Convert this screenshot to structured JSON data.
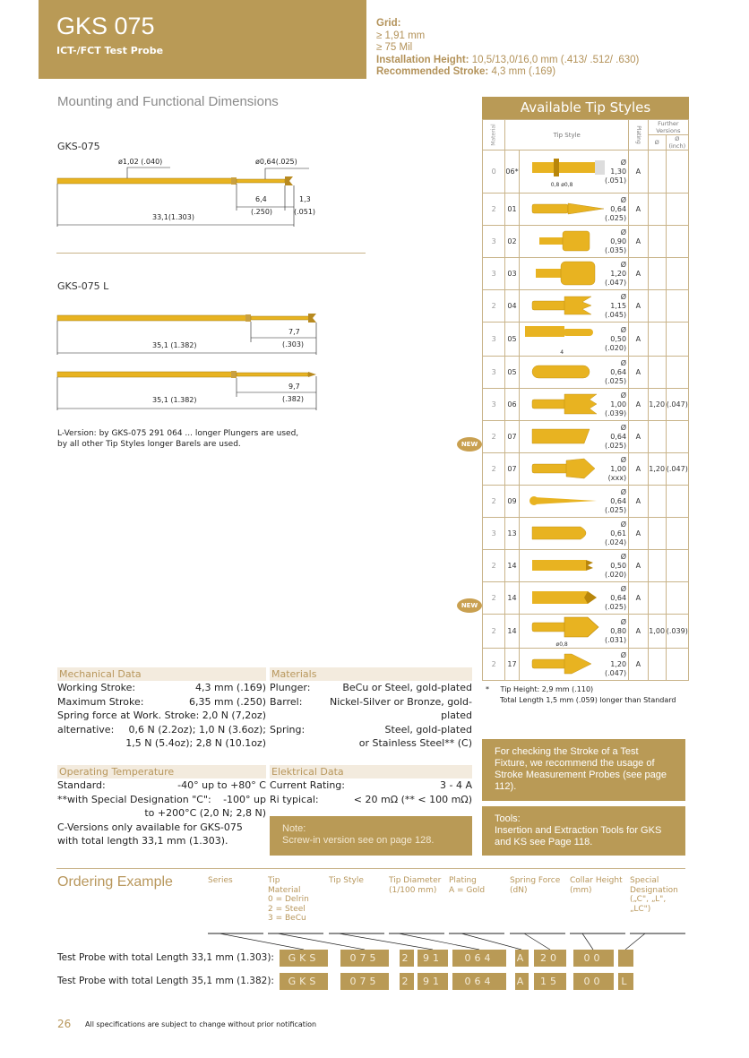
{
  "header": {
    "title": "GKS 075",
    "subtitle": "ICT-/FCT Test Probe"
  },
  "specs": {
    "grid_label": "Grid:",
    "grid_mm": "≥ 1,91 mm",
    "grid_mil": "≥ 75 Mil",
    "install_label": "Installation Height:",
    "install_value": "10,5/13,0/16,0 mm (.413/ .512/ .630)",
    "stroke_label": "Recommended Stroke:",
    "stroke_value": "4,3 mm (.169)"
  },
  "mounting": {
    "title": "Mounting and Functional Dimensions",
    "gks075": {
      "label": "GKS-075",
      "d_barrel": "ø1,02 (.040)",
      "d_plunger": "ø0,64(.025)",
      "dim1": "6,4",
      "dim1_in": "(.250)",
      "dim2": "1,3",
      "dim2_in": "(.051)",
      "total": "33,1(1.303)"
    },
    "gks075l": {
      "label": "GKS-075 L",
      "a_dim": "7,7",
      "a_dim_in": "(.303)",
      "a_total": "35,1 (1.382)",
      "b_dim": "9,7",
      "b_dim_in": "(.382)",
      "b_total": "35,1 (1.382)"
    },
    "note1": "L-Version: by  GKS-075 291 064 ... longer Plungers are used,",
    "note2": "by all other Tip Styles longer Barels are used."
  },
  "tips": {
    "title": "Available Tip Styles",
    "col_material": "Material",
    "col_tipstyle": "Tip Style",
    "col_plating": "Plating",
    "col_further": "Further Versions",
    "col_d": "Ø",
    "col_d_inch": "Ø (inch)",
    "rows": [
      {
        "mat": "0",
        "code": "06*",
        "d": "Ø 1,30",
        "in": "(.051)",
        "pl": "A",
        "fd": "",
        "fi": "",
        "shape": "collar-tip",
        "new": false,
        "dim_a": "0,8",
        "dim_b": "ø0,8"
      },
      {
        "mat": "2",
        "code": "01",
        "d": "Ø 0,64",
        "in": "(.025)",
        "pl": "A",
        "fd": "",
        "fi": "",
        "shape": "cone-point",
        "new": false
      },
      {
        "mat": "3",
        "code": "02",
        "d": "Ø 0,90",
        "in": "(.035)",
        "pl": "A",
        "fd": "",
        "fi": "",
        "shape": "flat-cup",
        "new": false
      },
      {
        "mat": "3",
        "code": "03",
        "d": "Ø 1,20",
        "in": "(.047)",
        "pl": "A",
        "fd": "",
        "fi": "",
        "shape": "large-cup",
        "new": false
      },
      {
        "mat": "2",
        "code": "04",
        "d": "Ø 1,15",
        "in": "(.045)",
        "pl": "A",
        "fd": "",
        "fi": "",
        "shape": "crown",
        "new": false
      },
      {
        "mat": "3",
        "code": "05",
        "d": "Ø 0,50",
        "in": "(.020)",
        "pl": "A",
        "fd": "",
        "fi": "",
        "shape": "stepped-round",
        "new": false,
        "dim_a": "4"
      },
      {
        "mat": "3",
        "code": "05",
        "d": "Ø 0,64",
        "in": "(.025)",
        "pl": "A",
        "fd": "",
        "fi": "",
        "shape": "round",
        "new": false
      },
      {
        "mat": "3",
        "code": "06",
        "d": "Ø 1,00",
        "in": "(.039)",
        "pl": "A",
        "fd": "1,20",
        "fi": "(.047)",
        "shape": "serrated-crown",
        "new": false
      },
      {
        "mat": "2",
        "code": "07",
        "d": "Ø 0,64",
        "in": "(.025)",
        "pl": "A",
        "fd": "",
        "fi": "",
        "shape": "chisel",
        "new": false
      },
      {
        "mat": "2",
        "code": "07",
        "d": "Ø 1,00",
        "in": "(xxx)",
        "pl": "A",
        "fd": "1,20",
        "fi": "(.047)",
        "shape": "pyramid-head",
        "new": true
      },
      {
        "mat": "2",
        "code": "09",
        "d": "Ø 0,64",
        "in": "(.025)",
        "pl": "A",
        "fd": "",
        "fi": "",
        "shape": "needle",
        "new": false
      },
      {
        "mat": "3",
        "code": "13",
        "d": "Ø 0,61",
        "in": "(.024)",
        "pl": "A",
        "fd": "",
        "fi": "",
        "shape": "bullet",
        "new": false
      },
      {
        "mat": "2",
        "code": "14",
        "d": "Ø 0,50",
        "in": "(.020)",
        "pl": "A",
        "fd": "",
        "fi": "",
        "shape": "small-crown",
        "new": false
      },
      {
        "mat": "2",
        "code": "14",
        "d": "Ø 0,64",
        "in": "(.025)",
        "pl": "A",
        "fd": "",
        "fi": "",
        "shape": "star-crown",
        "new": false
      },
      {
        "mat": "2",
        "code": "14",
        "d": "Ø 0,80",
        "in": "(.031)",
        "pl": "A",
        "fd": "1,00",
        "fi": "(.039)",
        "shape": "large-crown",
        "new": true,
        "dim_b": "ø0,8"
      },
      {
        "mat": "2",
        "code": "17",
        "d": "Ø 1,20",
        "in": "(.047)",
        "pl": "A",
        "fd": "",
        "fi": "",
        "shape": "spear",
        "new": false
      }
    ],
    "new_badge": "NEW",
    "footnote_mark": "*",
    "footnote1": "Tip Height: 2,9 mm (.110)",
    "footnote2": "Total Length 1,5 mm (.059) longer than Standard"
  },
  "mechanical": {
    "title": "Mechanical Data",
    "rows": [
      [
        "Working Stroke:",
        "4,3 mm (.169)"
      ],
      [
        "Maximum Stroke:",
        "6,35 mm (.250)"
      ],
      [
        "Spring force at Work. Stroke:",
        "2,0 N (7,2oz)"
      ],
      [
        "alternative:",
        "0,6 N (2.2oz); 1,0 N (3.6oz);"
      ],
      [
        "",
        "1,5 N (5.4oz); 2,8 N (10.1oz)"
      ]
    ]
  },
  "materials": {
    "title": "Materials",
    "rows": [
      [
        "Plunger:",
        "BeCu or Steel, gold-plated"
      ],
      [
        "Barrel:",
        "Nickel-Silver or Bronze, gold-plated"
      ],
      [
        "Spring:",
        "Steel, gold-plated"
      ],
      [
        "",
        "or Stainless Steel** (C)"
      ]
    ]
  },
  "temperature": {
    "title": "Operating Temperature",
    "rows": [
      [
        "Standard:",
        "-40° up to +80° C"
      ],
      [
        "**with Special Designation \"C\":",
        "-100° up"
      ],
      [
        "",
        "to +200°C (2,0 N; 2,8 N)"
      ]
    ],
    "note": "C-Versions only available for GKS-075 with total length 33,1 mm (1.303)."
  },
  "electrical": {
    "title": "Elektrical Data",
    "rows": [
      [
        "Current Rating:",
        "3 - 4 A"
      ],
      [
        "Ri typical:",
        "< 20 mΩ (** < 100 mΩ)"
      ]
    ]
  },
  "note_box": {
    "title": "Note:",
    "text": "Screw-in version see on page 128."
  },
  "stroke_box": {
    "text": "For checking the Stroke of a Test Fixture, we recommend the usage of Stroke Measurement Probes (see page 112)."
  },
  "tools_box": {
    "title": "Tools:",
    "text": "Insertion and Extraction Tools for GKS and KS see Page 118."
  },
  "ordering": {
    "title": "Ordering Example",
    "headers": [
      "Series",
      "Tip\nMaterial\n0 = Delrin\n2 = Steel\n3 = BeCu",
      "Tip Style",
      "Tip Diameter\n(1/100 mm)",
      "Plating\nA = Gold",
      "Spring Force\n(dN)",
      "Collar Height\n(mm)",
      "Special\nDesignation\n(„C\", „L\",\n„LC\")"
    ],
    "rows": [
      {
        "label": "Test Probe with total Length 33,1 mm (1.303):",
        "codes": [
          "GKS",
          "075",
          "2",
          "91",
          "064",
          "A",
          "20",
          "00",
          ""
        ]
      },
      {
        "label": "Test Probe with total Length 35,1 mm (1.382):",
        "codes": [
          "GKS",
          "075",
          "2",
          "91",
          "064",
          "A",
          "15",
          "00",
          "L"
        ]
      }
    ]
  },
  "footer": {
    "page": "26",
    "text": "All specifications are subject to change without prior notification"
  },
  "colors": {
    "gold": "#b99a56",
    "light": "#f3ebde",
    "probe": "#e8b321"
  }
}
